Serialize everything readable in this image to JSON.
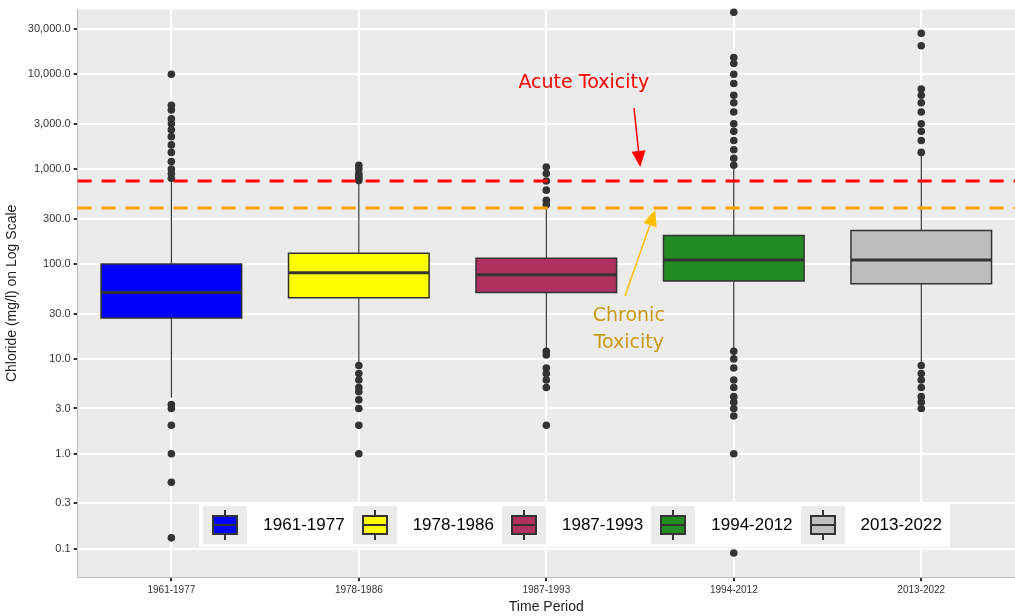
{
  "chart_data": {
    "type": "box",
    "xlabel": "Time Period",
    "ylabel": "Chloride (mg/l) on Log Scale",
    "categories": [
      "1961-1977",
      "1978-1986",
      "1987-1993",
      "1994-2012",
      "2013-2022"
    ],
    "series": [
      {
        "name": "1961-1977",
        "color": "#0000ff",
        "boxes": [
          {
            "low": 3.9,
            "q1": 27,
            "median": 50,
            "q3": 100,
            "high": 750,
            "outliers": [
              800,
              900,
              1000,
              1200,
              1500,
              1800,
              2200,
              2600,
              3000,
              3400,
              4200,
              4700,
              10000,
              3.3,
              3.0,
              2.0,
              1.0,
              0.5,
              0.13
            ]
          },
          null,
          null,
          null,
          null
        ]
      },
      {
        "name": "1978-1986",
        "color": "#ffff00",
        "boxes": [
          null,
          {
            "low": 8.9,
            "q1": 44,
            "median": 81,
            "q3": 130,
            "high": 730,
            "outliers": [
              760,
              800,
              850,
              900,
              1000,
              1100,
              8.5,
              7,
              6,
              5,
              4.5,
              3.7,
              3.0,
              2.0,
              1.0
            ]
          },
          null,
          null,
          null
        ]
      },
      {
        "name": "1987-1993",
        "color": "#b03060",
        "boxes": [
          null,
          null,
          {
            "low": 13,
            "q1": 50,
            "median": 77,
            "q3": 115,
            "high": 390,
            "outliers": [
              420,
              470,
              600,
              750,
              900,
              1050,
              12,
              11,
              8,
              7,
              6,
              5,
              2.0
            ]
          },
          null,
          null
        ]
      },
      {
        "name": "1994-2012",
        "color": "#228b22",
        "boxes": [
          null,
          null,
          null,
          {
            "low": 13,
            "q1": 66,
            "median": 110,
            "q3": 200,
            "high": 1000,
            "outliers": [
              1100,
              1300,
              1600,
              2000,
              2500,
              3000,
              4000,
              5000,
              6000,
              8000,
              10000,
              13000,
              15000,
              45000,
              12,
              10,
              8,
              6,
              5,
              4,
              3.5,
              3,
              2.5,
              1.0,
              0.09
            ]
          },
          null
        ]
      },
      {
        "name": "2013-2022",
        "color": "#bebebe",
        "boxes": [
          null,
          null,
          null,
          null,
          {
            "low": 8.9,
            "q1": 62,
            "median": 110,
            "q3": 225,
            "high": 1400,
            "outliers": [
              1500,
              2000,
              2500,
              3000,
              4000,
              5000,
              6000,
              7000,
              20000,
              27000,
              8.5,
              7,
              6,
              5,
              4,
              3.5,
              3.0
            ]
          }
        ]
      }
    ],
    "log": true,
    "ylim": [
      0.05,
      48000
    ],
    "yticks": [
      {
        "value": 0.1,
        "label": "0.1"
      },
      {
        "value": 0.3,
        "label": "0.3"
      },
      {
        "value": 1,
        "label": "1.0"
      },
      {
        "value": 3,
        "label": "3.0"
      },
      {
        "value": 10,
        "label": "10.0"
      },
      {
        "value": 30,
        "label": "30.0"
      },
      {
        "value": 100,
        "label": "100.0"
      },
      {
        "value": 300,
        "label": "300.0"
      },
      {
        "value": 1000,
        "label": "1,000.0"
      },
      {
        "value": 3000,
        "label": "3,000.0"
      },
      {
        "value": 10000,
        "label": "10,000.0"
      },
      {
        "value": 30000,
        "label": "30,000.0"
      }
    ],
    "ref_lines": [
      {
        "axis": "y",
        "value": 750,
        "label": "Acute Toxicity",
        "color": "#ff0000",
        "line_style": "dashed"
      },
      {
        "axis": "y",
        "value": 390,
        "color": "#ffa500",
        "line_style": "dashed"
      }
    ],
    "annotations": [
      "Chronic Toxicity"
    ],
    "grid": true,
    "legend": "bottom",
    "marker": "circle"
  }
}
